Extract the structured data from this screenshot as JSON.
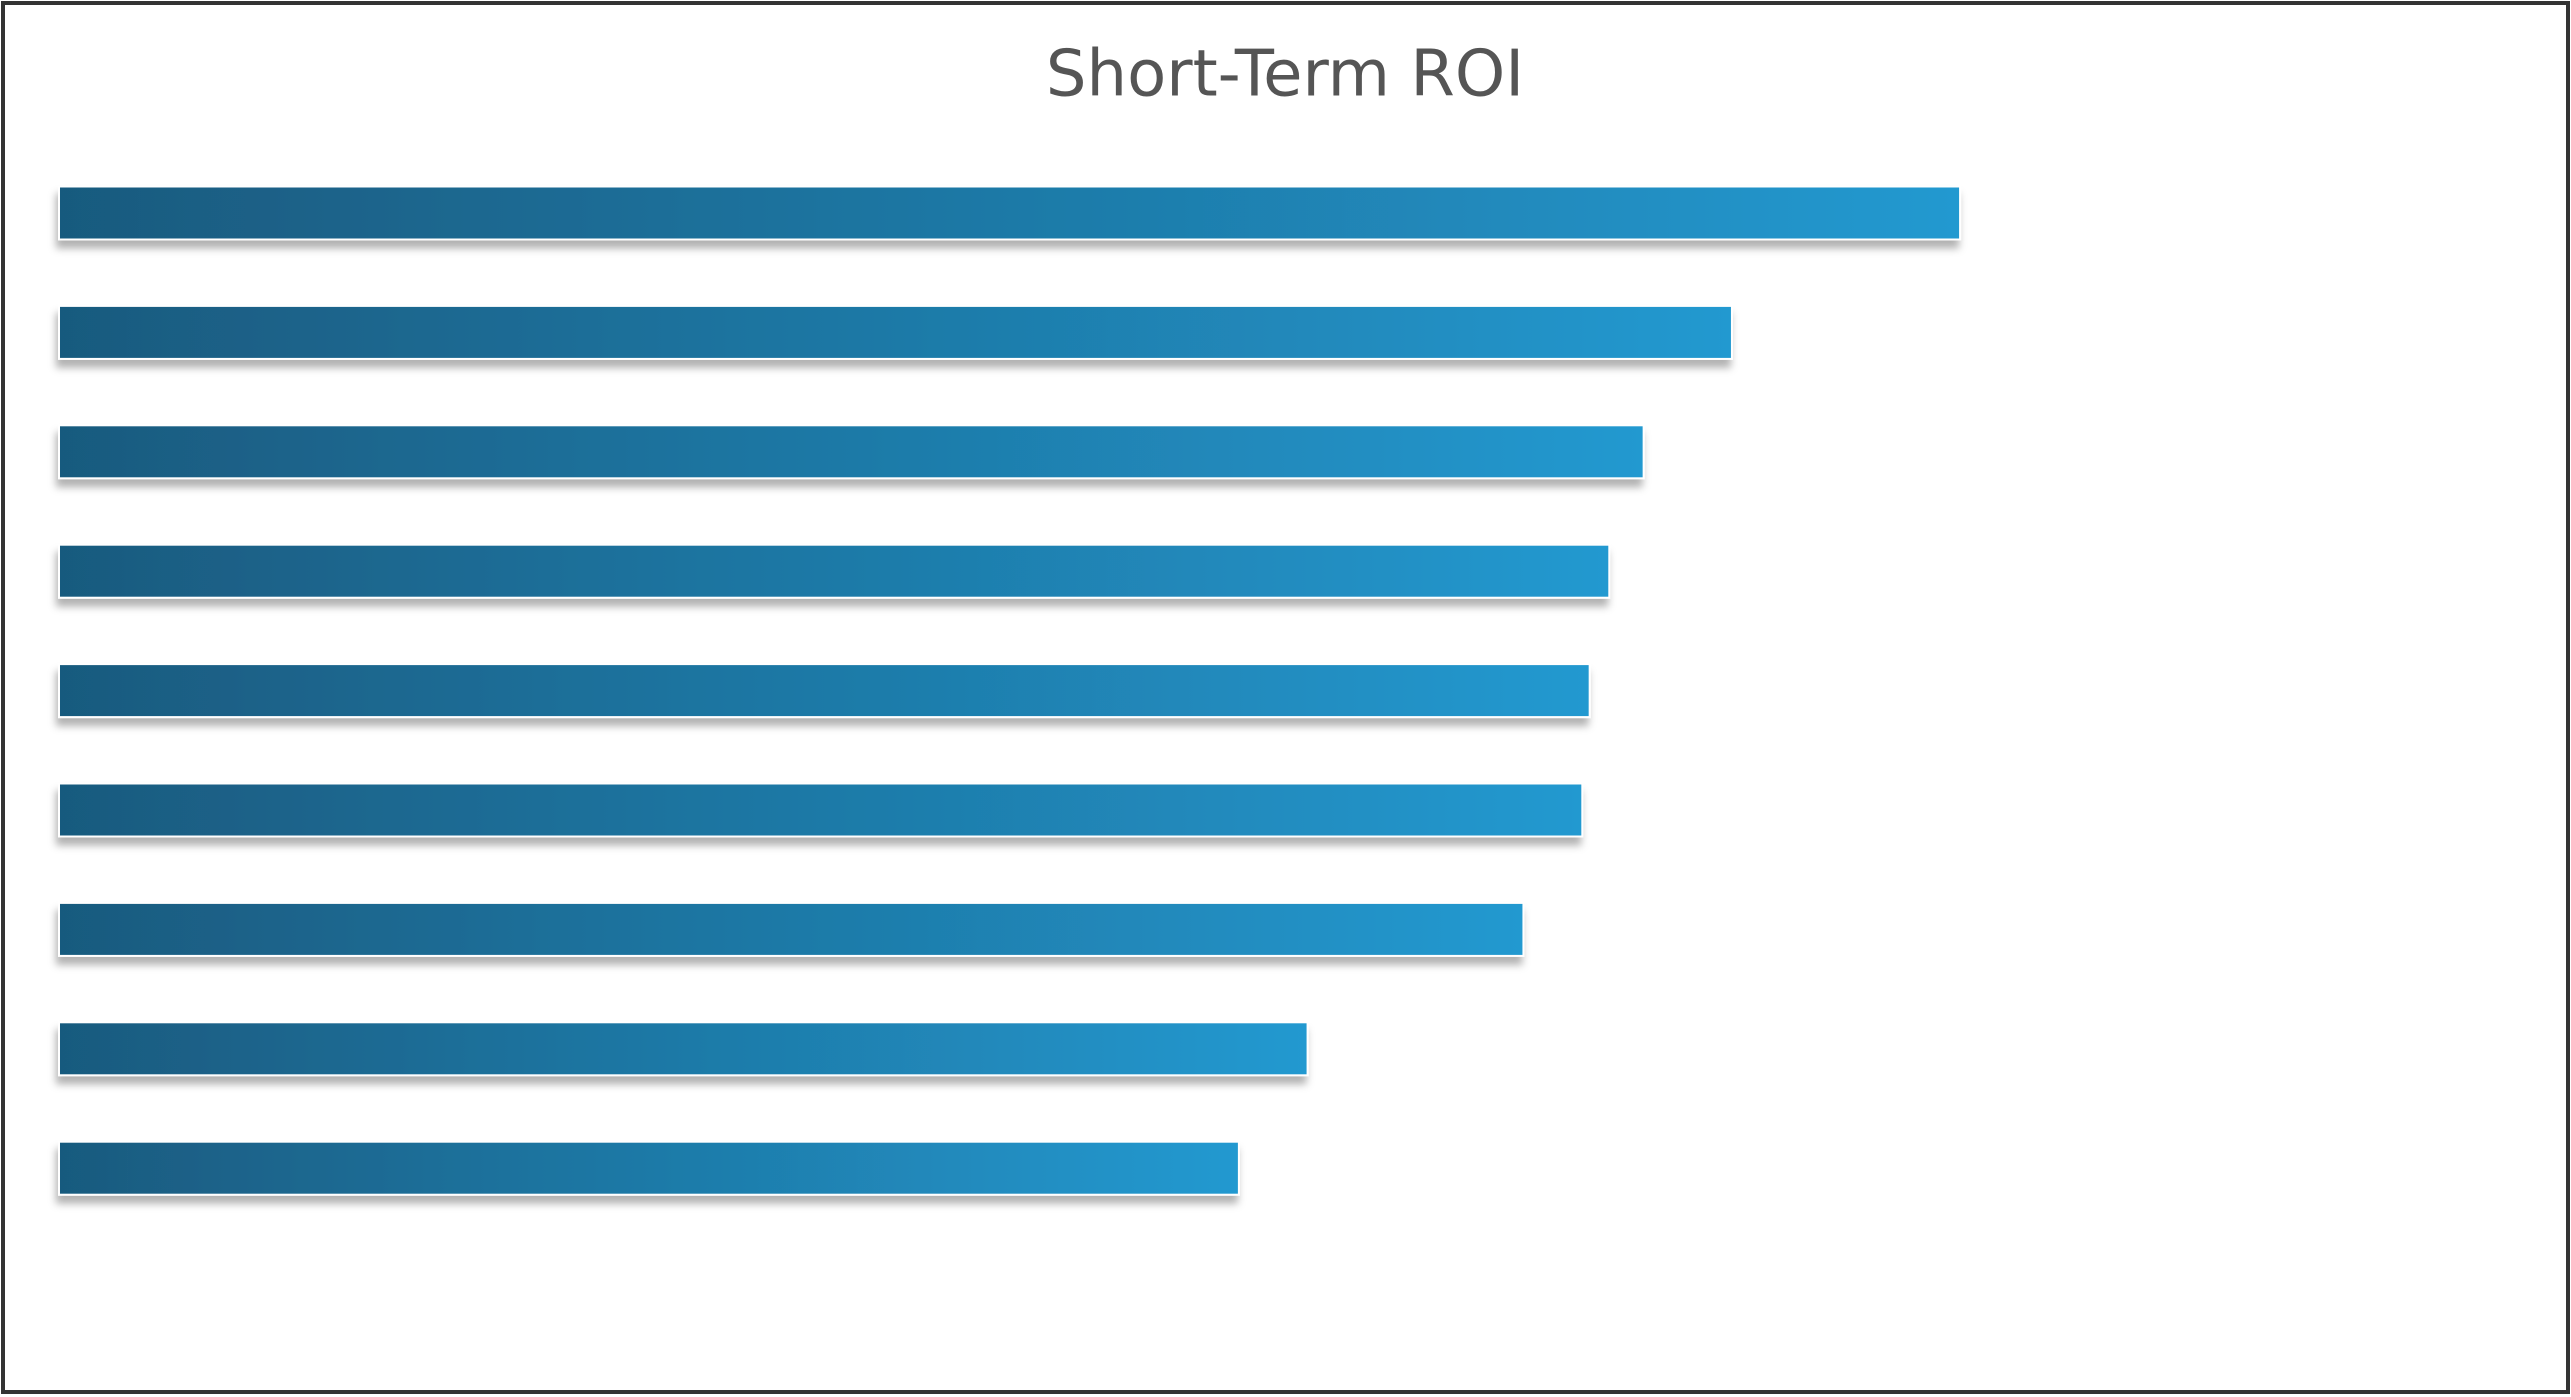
{
  "chart_data": {
    "type": "bar",
    "orientation": "horizontal",
    "title": "Short-Term ROI",
    "categories": [
      null,
      null,
      null,
      null,
      null,
      null,
      null,
      null,
      null
    ],
    "values": [
      77.5,
      68.2,
      64.6,
      63.2,
      62.4,
      62.1,
      59.7,
      50.9,
      48.1
    ],
    "color": [
      "#195a7e",
      "#2399d0"
    ],
    "xlim": [
      0,
      100
    ],
    "grid": false
  }
}
